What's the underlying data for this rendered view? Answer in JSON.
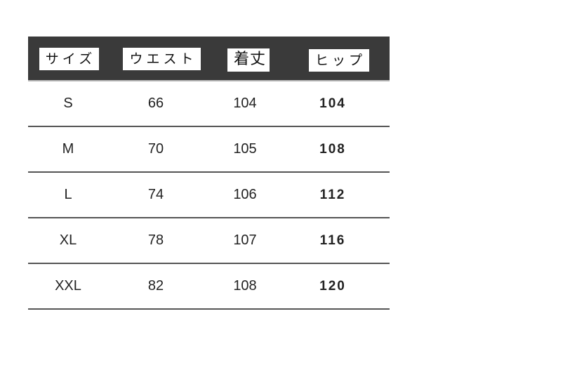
{
  "table": {
    "headers": [
      "サイズ",
      "ウエスト",
      "着丈",
      "ヒップ"
    ],
    "rows": [
      [
        "S",
        "66",
        "104",
        "104"
      ],
      [
        "M",
        "70",
        "105",
        "108"
      ],
      [
        "L",
        "74",
        "106",
        "112"
      ],
      [
        "XL",
        "78",
        "107",
        "116"
      ],
      [
        "XXL",
        "82",
        "108",
        "120"
      ]
    ]
  }
}
